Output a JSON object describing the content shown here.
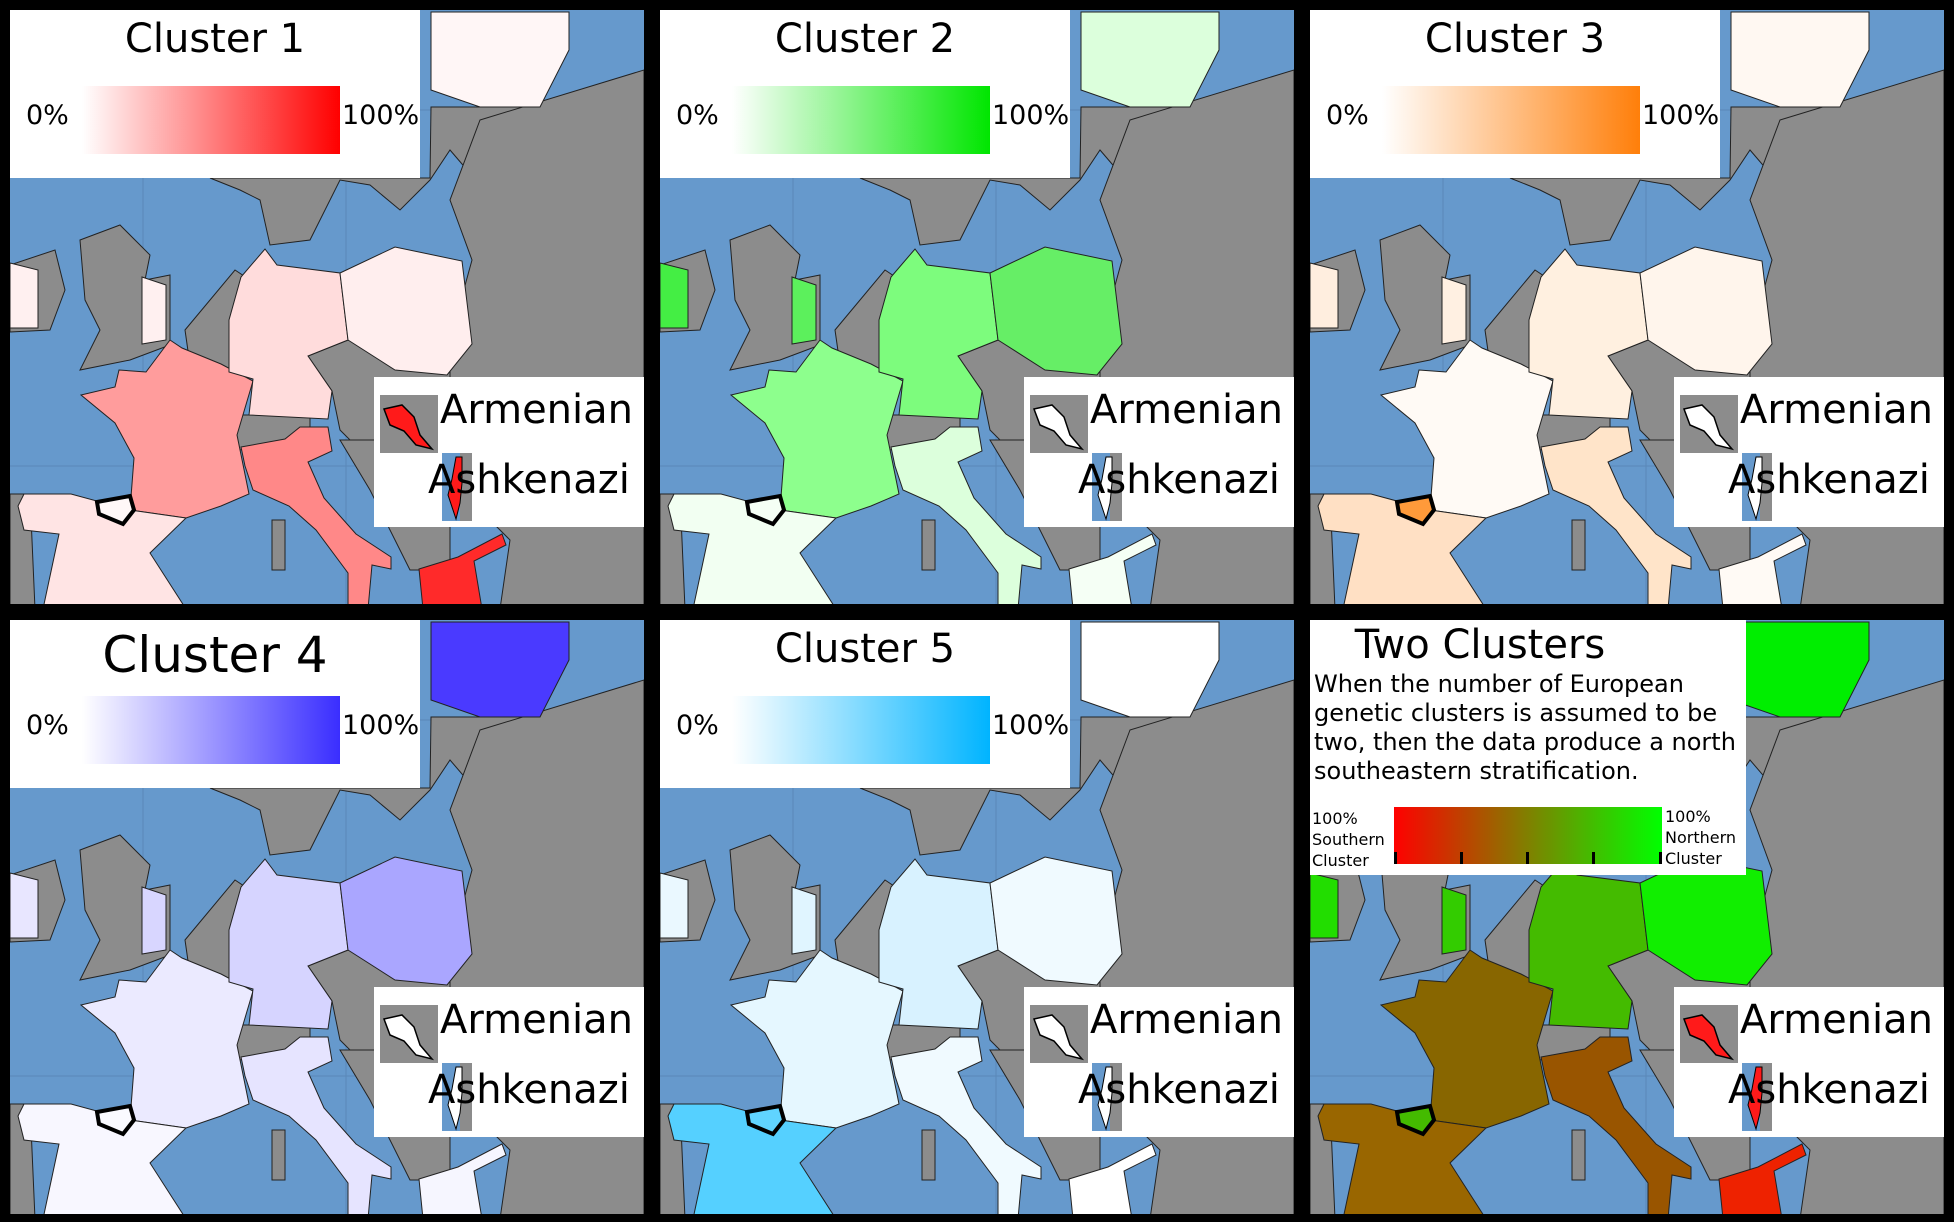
{
  "legend_labels": {
    "armenian": "Armenian",
    "ashkenazi": "Ashkenazi"
  },
  "colors": {
    "sea": "#6699cc",
    "land": "#8c8c8c",
    "border": "#222222"
  },
  "panels": [
    {
      "title": "Cluster 1",
      "min_label": "0%",
      "max_label": "100%",
      "gradient": [
        "#ffffff",
        "#ff0000"
      ],
      "fills": {
        "finland": "#fff6f6",
        "ireland": "#fff0f0",
        "england": "#fff0f0",
        "france": "#ff9c9c",
        "germany": "#ffdcdc",
        "poland": "#ffeeee",
        "spain": "#ffe4e4",
        "italy": "#ff8888",
        "greece": "#ff2a2a",
        "basque": "#fff8f8"
      },
      "armenian_icon": "#ff1a1a",
      "ashkenazi_icon": "#ff1a1a"
    },
    {
      "title": "Cluster 2",
      "min_label": "0%",
      "max_label": "100%",
      "gradient": [
        "#ffffff",
        "#00e600"
      ],
      "fills": {
        "finland": "#dcffdc",
        "ireland": "#44ee44",
        "england": "#5cf05c",
        "france": "#8dff8d",
        "germany": "#7dfc7d",
        "poland": "#66ee66",
        "spain": "#f2fff2",
        "italy": "#dcffdc",
        "greece": "#f5fff5",
        "basque": "#f5fff5"
      },
      "armenian_icon": "#ffffff",
      "ashkenazi_icon": "#ffffff"
    },
    {
      "title": "Cluster 3",
      "min_label": "0%",
      "max_label": "100%",
      "gradient": [
        "#ffffff",
        "#ff7f0a"
      ],
      "fills": {
        "finland": "#fff8f2",
        "ireland": "#ffeedf",
        "england": "#fff0e2",
        "france": "#fffaf5",
        "germany": "#fff0e0",
        "poland": "#fff5ec",
        "spain": "#ffe0c4",
        "italy": "#ffe4c9",
        "greece": "#fffaf5",
        "basque": "#ff9a3a"
      },
      "armenian_icon": "#ffffff",
      "ashkenazi_icon": "#ffffff"
    },
    {
      "title": "Cluster 4",
      "min_label": "0%",
      "max_label": "100%",
      "gradient": [
        "#ffffff",
        "#3a2eff"
      ],
      "fills": {
        "finland": "#4a3aff",
        "ireland": "#e8e6ff",
        "england": "#d8d6ff",
        "france": "#ebeaff",
        "germany": "#d6d4ff",
        "poland": "#aaa6ff",
        "spain": "#f8f7ff",
        "italy": "#e6e4ff",
        "greece": "#f6f6ff",
        "basque": "#fafaff"
      },
      "armenian_icon": "#ffffff",
      "ashkenazi_icon": "#ffffff"
    },
    {
      "title": "Cluster 5",
      "min_label": "0%",
      "max_label": "100%",
      "gradient": [
        "#ffffff",
        "#00b4ff"
      ],
      "fills": {
        "finland": "#ffffff",
        "ireland": "#eaf8ff",
        "england": "#e0f5ff",
        "france": "#e5f7ff",
        "germany": "#d8f2ff",
        "poland": "#f0faff",
        "spain": "#55d0ff",
        "italy": "#f0faff",
        "greece": "#ffffff",
        "basque": "#60d4ff"
      },
      "armenian_icon": "#ffffff",
      "ashkenazi_icon": "#ffffff"
    },
    {
      "title": "Two Clusters",
      "description": "When the number of European genetic clusters is assumed to be two, then the data produce a north southeastern stratification.",
      "min_label": "100% Southern Cluster",
      "max_label": "100% Northern Cluster",
      "gradient": [
        "#ff0000",
        "#808000",
        "#00ff00"
      ],
      "fills": {
        "finland": "#00ee00",
        "ireland": "#22dd00",
        "england": "#33cc00",
        "france": "#886600",
        "germany": "#44bb00",
        "poland": "#11ee00",
        "spain": "#996600",
        "italy": "#995500",
        "greece": "#ee2200",
        "basque": "#44bb00"
      },
      "armenian_icon": "#ff1a1a",
      "ashkenazi_icon": "#ff1a1a"
    }
  ]
}
